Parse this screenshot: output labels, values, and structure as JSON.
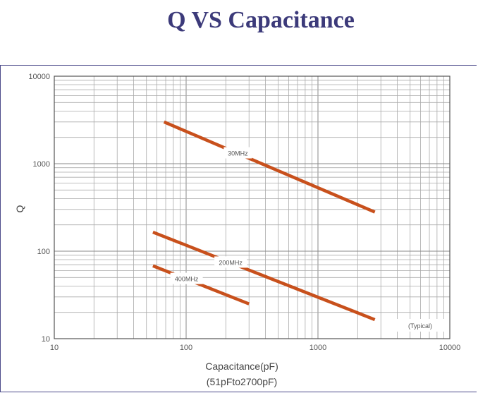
{
  "title": "Q VS Capacitance",
  "chart_data": {
    "type": "line",
    "title": "Q VS Capacitance",
    "xlabel": "Capacitance(pF)",
    "xlabel_sub": "(51pFto2700pF)",
    "ylabel": "Q",
    "x_scale": "log",
    "y_scale": "log",
    "xlim": [
      10,
      10000
    ],
    "ylim": [
      10,
      10000
    ],
    "x_ticks": [
      "10",
      "100",
      "1000",
      "10000"
    ],
    "y_ticks": [
      "10",
      "100",
      "1000",
      "10000"
    ],
    "grid": true,
    "note": "(Typical)",
    "line_color": "#c8501c",
    "series": [
      {
        "name": "30MHz",
        "x": [
          68,
          2700
        ],
        "y": [
          3000,
          280
        ]
      },
      {
        "name": "200MHz",
        "x": [
          56,
          2700
        ],
        "y": [
          165,
          16.5
        ]
      },
      {
        "name": "400MHz",
        "x": [
          56,
          300
        ],
        "y": [
          68,
          25
        ]
      }
    ]
  }
}
